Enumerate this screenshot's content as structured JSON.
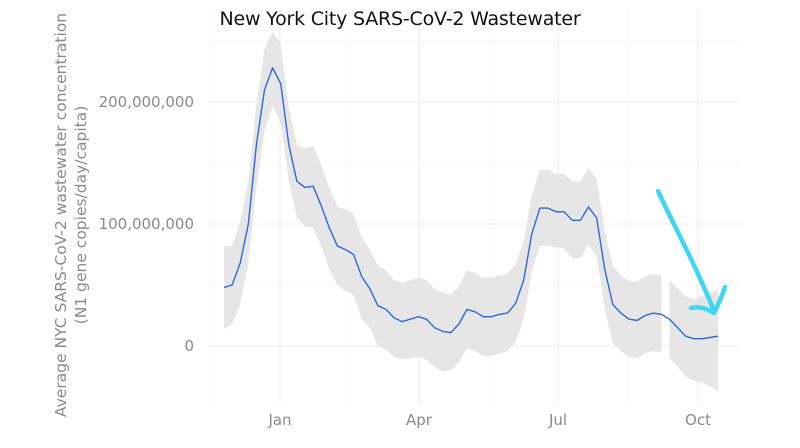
{
  "chart_data": {
    "type": "line",
    "title": "New York City SARS-CoV-2 Wastewater",
    "ylabel_lines": [
      "Average NYC SARS-CoV-2 wastewater concentration",
      "(N1 gene copies/day/capita)"
    ],
    "xlabel": "",
    "x_tick_labels": [
      "Jan",
      "Apr",
      "Jul",
      "Oct"
    ],
    "y_tick_labels": [
      "0",
      "100,000,000",
      "200,000,000"
    ],
    "y_ticks": [
      0,
      100000000,
      200000000
    ],
    "ylim": [
      -25000000,
      265000000
    ],
    "grid": true,
    "legend": "none",
    "series": [
      {
        "week": [
          0,
          1,
          2,
          3,
          4,
          5,
          6,
          7,
          8,
          9,
          10,
          11,
          12,
          13,
          14,
          15,
          16,
          17,
          18,
          19,
          20,
          21,
          22,
          23,
          24,
          25,
          26,
          27,
          28,
          29,
          30,
          31,
          32,
          33,
          34,
          35,
          36,
          37,
          38,
          39,
          40,
          41,
          42,
          43,
          44,
          45,
          46,
          47,
          48,
          49,
          50,
          51,
          52,
          53,
          54
        ],
        "values": [
          48000000,
          50000000,
          68000000,
          100000000,
          165000000,
          210000000,
          228000000,
          215000000,
          165000000,
          135000000,
          130000000,
          131000000,
          115000000,
          97000000,
          82000000,
          79000000,
          75000000,
          57000000,
          47000000,
          33000000,
          30000000,
          23000000,
          20000000,
          22000000,
          24000000,
          22000000,
          15000000,
          12000000,
          11000000,
          18000000,
          30000000,
          28000000,
          24000000,
          24000000,
          26000000,
          27000000,
          35000000,
          54000000,
          92000000,
          113000000,
          113000000,
          110000000,
          110000000,
          103000000,
          103000000,
          114000000,
          105000000,
          63000000,
          34000000,
          27000000,
          22000000,
          21000000,
          25000000,
          27000000,
          26000000
        ],
        "lower": [
          14000000,
          18000000,
          34000000,
          68000000,
          130000000,
          176000000,
          197000000,
          183000000,
          135000000,
          105000000,
          98000000,
          97000000,
          82000000,
          63000000,
          50000000,
          45000000,
          42000000,
          22000000,
          15000000,
          0,
          -3000000,
          -9000000,
          -11000000,
          -10000000,
          -9000000,
          -11000000,
          -17000000,
          -21000000,
          -20000000,
          -13000000,
          -2000000,
          -4000000,
          -8000000,
          -8000000,
          -6000000,
          -4000000,
          3000000,
          22000000,
          61000000,
          82000000,
          82000000,
          81000000,
          80000000,
          72000000,
          72000000,
          83000000,
          74000000,
          31000000,
          2000000,
          -4000000,
          -9000000,
          -10000000,
          -6000000,
          -4000000,
          -5000000
        ],
        "upper": [
          82000000,
          82000000,
          102000000,
          134000000,
          198000000,
          243000000,
          258000000,
          247000000,
          196000000,
          165000000,
          162000000,
          164000000,
          148000000,
          130000000,
          114000000,
          112000000,
          108000000,
          89000000,
          79000000,
          66000000,
          62000000,
          54000000,
          52000000,
          54000000,
          56000000,
          54000000,
          47000000,
          44000000,
          42000000,
          49000000,
          62000000,
          60000000,
          56000000,
          56000000,
          58000000,
          59000000,
          67000000,
          86000000,
          124000000,
          144000000,
          145000000,
          141000000,
          141000000,
          135000000,
          135000000,
          146000000,
          137000000,
          95000000,
          66000000,
          58000000,
          53000000,
          53000000,
          57000000,
          59000000,
          58000000
        ]
      },
      {
        "week": [
          55,
          56,
          57,
          58,
          59,
          60,
          61
        ],
        "values": [
          22000000,
          15000000,
          8000000,
          6000000,
          6000000,
          7000000,
          8000000
        ],
        "lower": [
          -10000000,
          -17000000,
          -25000000,
          -28000000,
          -30000000,
          -33000000,
          -37000000
        ],
        "upper": [
          54000000,
          47000000,
          41000000,
          38000000,
          41000000,
          44000000,
          46000000
        ]
      }
    ]
  },
  "colors": {
    "line": "#3366dd",
    "ribbon": "#e6e6e6",
    "annotation_arrow": "#3fd6f2"
  }
}
